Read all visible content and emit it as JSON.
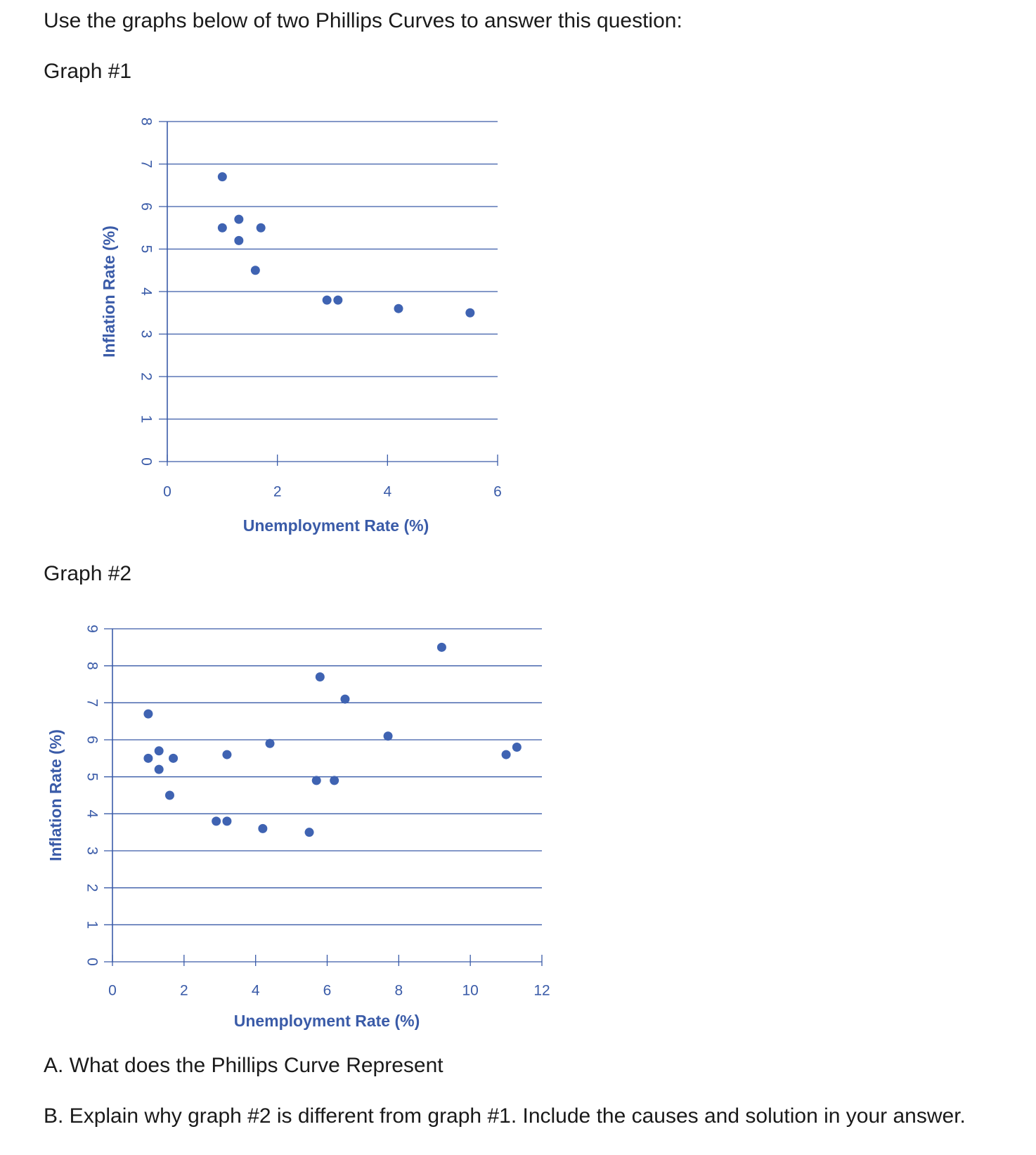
{
  "text": {
    "intro": "Use the graphs below of two Phillips Curves to answer this question:",
    "graph1_title": "Graph #1",
    "graph2_title": "Graph #2",
    "question_a": "A. What does the Phillips Curve Represent",
    "question_b": "B. Explain why graph #2 is different from graph #1.  Include the causes and solution in your answer."
  },
  "colors": {
    "accent": "#3a5ba8",
    "point": "#3f63b2",
    "grid": "#3a5ba8"
  },
  "chart_data": [
    {
      "type": "scatter",
      "title": "",
      "xlabel": "Unemployment Rate (%)",
      "ylabel": "Inflation Rate (%)",
      "xlim": [
        0,
        6
      ],
      "ylim": [
        0,
        8
      ],
      "xticks": [
        0,
        2,
        4,
        6
      ],
      "yticks": [
        0,
        1,
        2,
        3,
        4,
        5,
        6,
        7,
        8
      ],
      "grid": "horizontal",
      "points": [
        {
          "x": 1.0,
          "y": 6.7
        },
        {
          "x": 1.0,
          "y": 5.5
        },
        {
          "x": 1.3,
          "y": 5.7
        },
        {
          "x": 1.3,
          "y": 5.2
        },
        {
          "x": 1.7,
          "y": 5.5
        },
        {
          "x": 1.6,
          "y": 4.5
        },
        {
          "x": 2.9,
          "y": 3.8
        },
        {
          "x": 3.1,
          "y": 3.8
        },
        {
          "x": 4.2,
          "y": 3.6
        },
        {
          "x": 5.5,
          "y": 3.5
        }
      ]
    },
    {
      "type": "scatter",
      "title": "",
      "xlabel": "Unemployment Rate (%)",
      "ylabel": "Inflation Rate (%)",
      "xlim": [
        0,
        12
      ],
      "ylim": [
        0,
        9
      ],
      "xticks": [
        0,
        2,
        4,
        6,
        8,
        10,
        12
      ],
      "yticks": [
        0,
        1,
        2,
        3,
        4,
        5,
        6,
        7,
        8,
        9
      ],
      "grid": "horizontal",
      "points": [
        {
          "x": 1.0,
          "y": 6.7
        },
        {
          "x": 1.0,
          "y": 5.5
        },
        {
          "x": 1.3,
          "y": 5.7
        },
        {
          "x": 1.3,
          "y": 5.2
        },
        {
          "x": 1.7,
          "y": 5.5
        },
        {
          "x": 1.6,
          "y": 4.5
        },
        {
          "x": 2.9,
          "y": 3.8
        },
        {
          "x": 3.2,
          "y": 3.8
        },
        {
          "x": 3.2,
          "y": 5.6
        },
        {
          "x": 4.2,
          "y": 3.6
        },
        {
          "x": 4.4,
          "y": 5.9
        },
        {
          "x": 5.5,
          "y": 3.5
        },
        {
          "x": 5.7,
          "y": 4.9
        },
        {
          "x": 6.2,
          "y": 4.9
        },
        {
          "x": 5.8,
          "y": 7.7
        },
        {
          "x": 6.5,
          "y": 7.1
        },
        {
          "x": 7.7,
          "y": 6.1
        },
        {
          "x": 9.2,
          "y": 8.5
        },
        {
          "x": 11.0,
          "y": 5.6
        },
        {
          "x": 11.3,
          "y": 5.8
        }
      ]
    }
  ]
}
